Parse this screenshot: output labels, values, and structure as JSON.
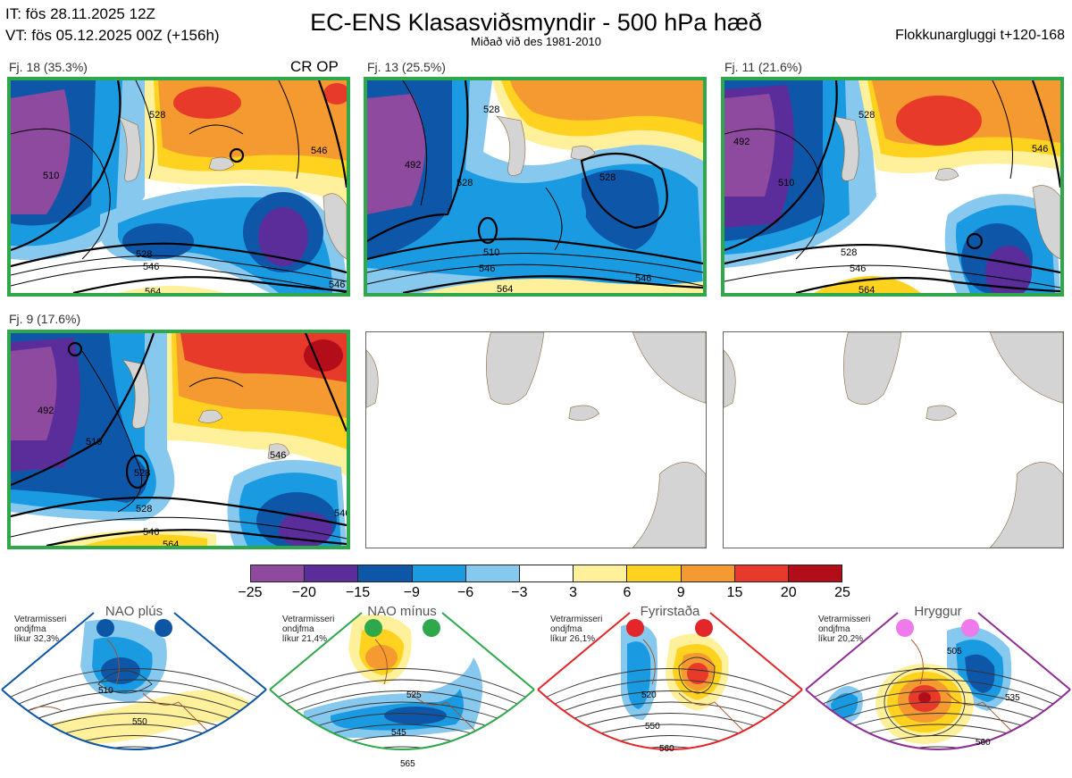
{
  "header": {
    "it": "IT: fös 28.11.2025 12Z",
    "vt": "VT: fös 05.12.2025 00Z  (+156h)",
    "title": "EC-ENS Klasasviðsmyndir - 500 hPa hæð",
    "subtitle": "Miðað við des 1981-2010",
    "right": "Flokkunargluggi t+120-168"
  },
  "panels": [
    {
      "label": "Fj. 18 (35.3%)",
      "tag": "CR OP",
      "contours": [
        "528",
        "510",
        "546",
        "564",
        "546",
        "528",
        "546"
      ]
    },
    {
      "label": "Fj. 13 (25.5%)",
      "contours": [
        "528",
        "492",
        "528",
        "510",
        "528",
        "546",
        "564",
        "546"
      ]
    },
    {
      "label": "Fj. 11 (21.6%)",
      "contours": [
        "492",
        "510",
        "528",
        "528",
        "546",
        "546",
        "564"
      ]
    },
    {
      "label": "Fj. 9 (17.6%)",
      "contours": [
        "492",
        "510",
        "528",
        "528",
        "546",
        "564",
        "546",
        "546"
      ]
    }
  ],
  "colorbar": {
    "colors": [
      "#8e4a9e",
      "#5b2d9b",
      "#0e57a8",
      "#1a9ae0",
      "#86c8ee",
      "#ffffff",
      "#fff19b",
      "#ffd21f",
      "#f59a30",
      "#e83a2a",
      "#b40d1a"
    ],
    "ticks": [
      "−25",
      "−20",
      "−15",
      "−9",
      "−6",
      "−3",
      "3",
      "6",
      "9",
      "15",
      "20",
      "25"
    ]
  },
  "regimes": [
    {
      "name": "NAO plús",
      "stat": [
        "Vetrarmisseri",
        "ondjfma",
        "líkur 32,3%"
      ],
      "border": "#0d55a5",
      "dot": "#0d55a5",
      "contours": [
        "510",
        "550"
      ]
    },
    {
      "name": "NAO mínus",
      "stat": [
        "Vetrarmisseri",
        "ondjfma",
        "líkur 21,4%"
      ],
      "border": "#2ea84a",
      "dot": "#2ea84a",
      "contours": [
        "525",
        "545",
        "565"
      ]
    },
    {
      "name": "Fyrirstaða",
      "stat": [
        "Vetrarmisseri",
        "ondjfma",
        "líkur 26,1%"
      ],
      "border": "#e3262a",
      "dot": "#e3262a",
      "contours": [
        "520",
        "550",
        "560"
      ]
    },
    {
      "name": "Hryggur",
      "stat": [
        "Vetrarmisseri",
        "ondjfma",
        "líkur 20,2%"
      ],
      "border": "#8e2e93",
      "dot": "#ee7aec",
      "contours": [
        "505",
        "535",
        "560"
      ]
    }
  ]
}
